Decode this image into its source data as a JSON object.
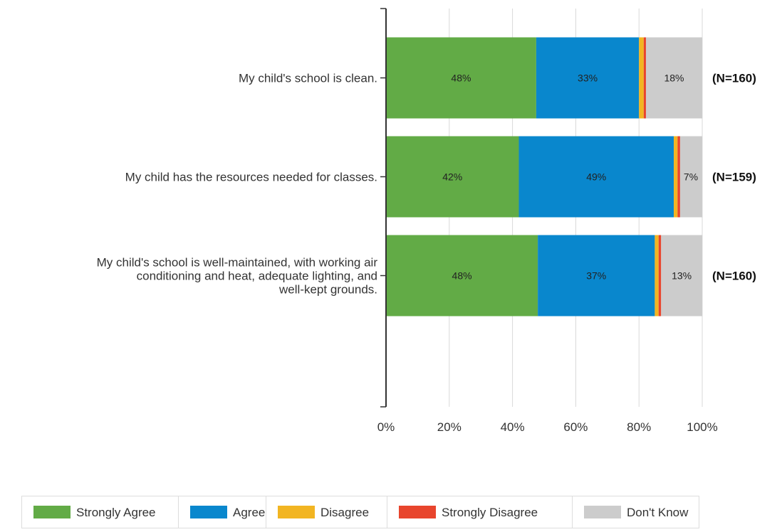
{
  "chart_data": {
    "type": "bar",
    "orientation": "horizontal",
    "stacked": true,
    "categories": [
      [
        "My child's school is clean."
      ],
      [
        "My child has the resources needed for classes."
      ],
      [
        "My child's school is well-maintained, with working air",
        "conditioning and heat, adequate lighting, and",
        "well-kept grounds."
      ]
    ],
    "n_labels": [
      "(N=160)",
      "(N=159)",
      "(N=160)"
    ],
    "series": [
      {
        "name": "Strongly Agree",
        "color": "#62ab46",
        "values": [
          47.5,
          42,
          48
        ],
        "labels": [
          "48%",
          "42%",
          "48%"
        ]
      },
      {
        "name": "Agree",
        "color": "#0987cd",
        "values": [
          32.5,
          49,
          37
        ],
        "labels": [
          "33%",
          "49%",
          "37%"
        ]
      },
      {
        "name": "Disagree",
        "color": "#f2b522",
        "values": [
          1.5,
          1.2,
          1.2
        ],
        "labels": [
          "",
          "",
          ""
        ]
      },
      {
        "name": "Strongly Disagree",
        "color": "#e8452d",
        "values": [
          0.7,
          0.8,
          0.8
        ],
        "labels": [
          "",
          "",
          ""
        ]
      },
      {
        "name": "Don't Know",
        "color": "#cccccc",
        "values": [
          17.8,
          7,
          13
        ],
        "labels": [
          "18%",
          "7%",
          "13%"
        ]
      }
    ],
    "xlim": [
      0,
      100
    ],
    "x_ticks": [
      0,
      20,
      40,
      60,
      80,
      100
    ],
    "x_tick_labels": [
      "0%",
      "20%",
      "40%",
      "60%",
      "80%",
      "100%"
    ],
    "grid": true,
    "legend_position": "bottom"
  }
}
